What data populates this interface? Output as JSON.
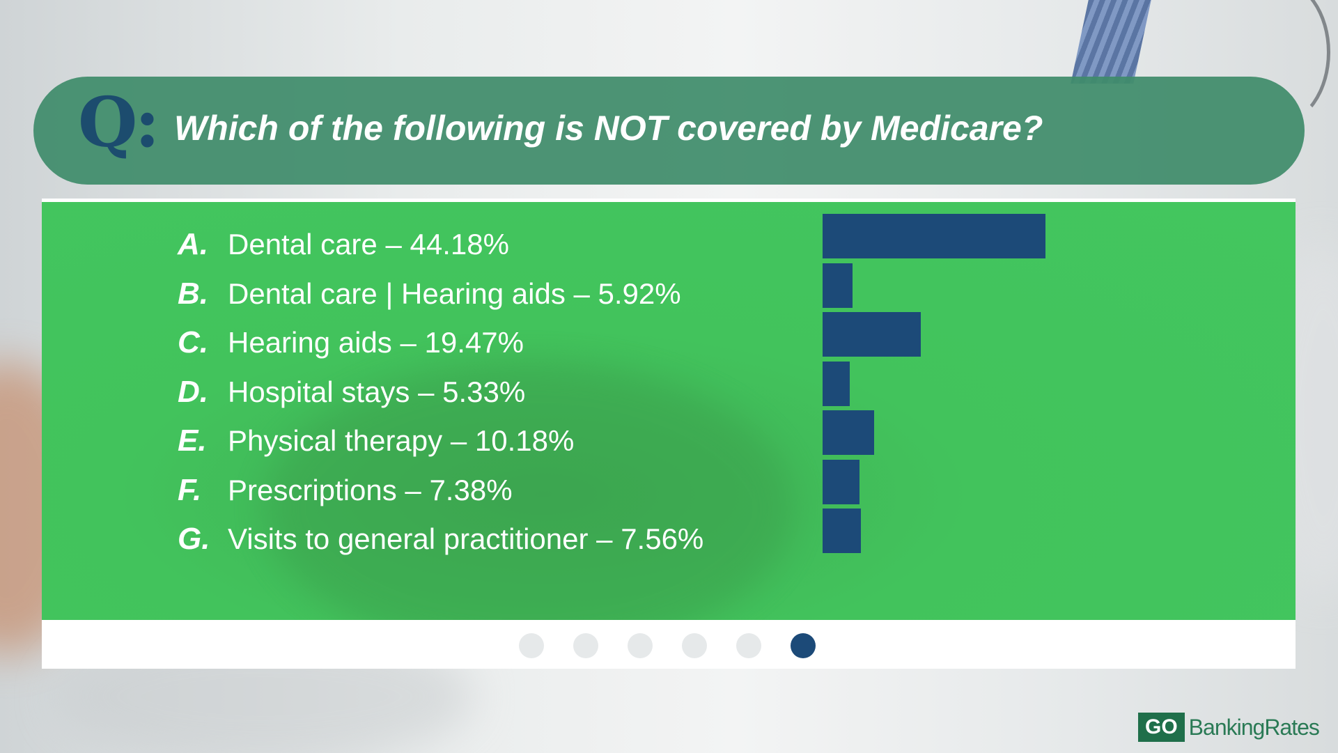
{
  "header": {
    "q_mark": "Q:",
    "question": "Which of the following is NOT covered by Medicare?"
  },
  "colors": {
    "header_bg": "#3f8c6b",
    "panel_bg": "#43c65f",
    "bar": "#1c4a78",
    "text": "#ffffff"
  },
  "chart_data": {
    "type": "bar",
    "orientation": "horizontal",
    "categories": [
      "Dental care",
      "Dental care | Hearing aids",
      "Hearing aids",
      "Hospital stays",
      "Physical therapy",
      "Prescriptions",
      "Visits to general practitioner"
    ],
    "values": [
      44.18,
      5.92,
      19.47,
      5.33,
      10.18,
      7.38,
      7.56
    ],
    "unit": "%",
    "title": "Which of the following is NOT covered by Medicare?",
    "grid": false,
    "legend": "none"
  },
  "options": [
    {
      "letter": "A.",
      "text": "Dental care – 44.18%"
    },
    {
      "letter": "B.",
      "text": "Dental care | Hearing aids – 5.92%"
    },
    {
      "letter": "C.",
      "text": "Hearing aids – 19.47%"
    },
    {
      "letter": "D.",
      "text": "Hospital stays – 5.33%"
    },
    {
      "letter": "E.",
      "text": "Physical therapy – 10.18%"
    },
    {
      "letter": "F.",
      "text": "Prescriptions – 7.38%"
    },
    {
      "letter": "G.",
      "text": "Visits to general practitioner – 7.56%"
    }
  ],
  "pagination": {
    "total": 6,
    "active_index": 5
  },
  "logo": {
    "go": "GO",
    "text": "BankingRates"
  }
}
